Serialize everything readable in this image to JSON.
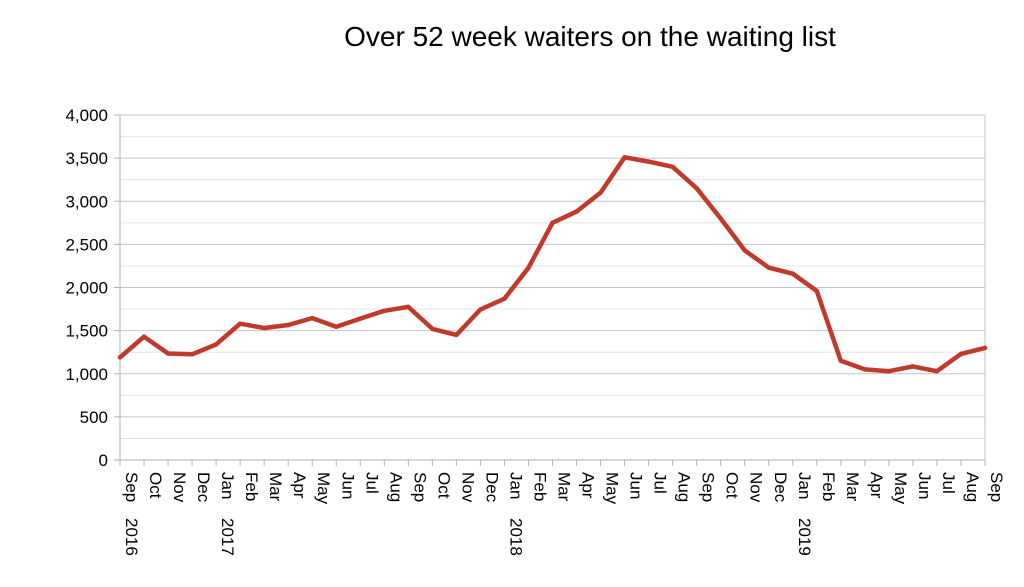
{
  "chart_data": {
    "type": "line",
    "title": "Over 52 week waiters on the waiting list",
    "xlabel": "",
    "ylabel": "",
    "ylim": [
      0,
      4000
    ],
    "yticks": [
      0,
      500,
      1000,
      1500,
      2000,
      2500,
      3000,
      3500,
      4000
    ],
    "ytick_labels": [
      "0",
      "500",
      "1,000",
      "1,500",
      "2,000",
      "2,500",
      "3,000",
      "3,500",
      "4,000"
    ],
    "grid": true,
    "legend": "none",
    "line_color": "#c0392b",
    "categories": [
      "Sep",
      "Oct",
      "Nov",
      "Dec",
      "Jan",
      "Feb",
      "Mar",
      "Apr",
      "May",
      "Jun",
      "Jul",
      "Aug",
      "Sep",
      "Oct",
      "Nov",
      "Dec",
      "Jan",
      "Feb",
      "Mar",
      "Apr",
      "May",
      "Jun",
      "Jul",
      "Aug",
      "Sep",
      "Oct",
      "Nov",
      "Dec",
      "Jan",
      "Feb",
      "Mar",
      "Apr",
      "May",
      "Jun",
      "Jul",
      "Aug",
      "Sep"
    ],
    "year_labels": [
      {
        "index": 0,
        "label": "2016"
      },
      {
        "index": 4,
        "label": "2017"
      },
      {
        "index": 16,
        "label": "2018"
      },
      {
        "index": 28,
        "label": "2019"
      }
    ],
    "series": [
      {
        "values": [
          1190,
          1430,
          1235,
          1225,
          1340,
          1580,
          1530,
          1565,
          1645,
          1545,
          1640,
          1730,
          1775,
          1520,
          1450,
          1745,
          1870,
          2230,
          2750,
          2880,
          3100,
          3510,
          3460,
          3400,
          3150,
          2800,
          2430,
          2230,
          2160,
          1960,
          1150,
          1050,
          1030,
          1085,
          1030,
          1230,
          1300
        ]
      }
    ]
  }
}
